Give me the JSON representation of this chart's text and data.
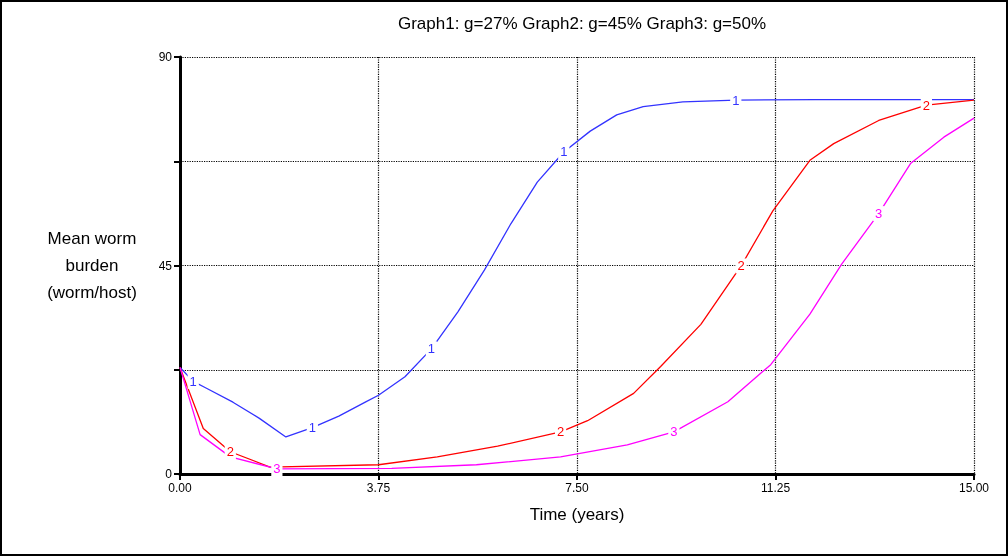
{
  "chart_data": {
    "type": "line",
    "title": "Graph1: g=27% Graph2: g=45% Graph3: g=50%",
    "xlabel": "Time (years)",
    "ylabel": "Mean worm\nburden\n(worm/host)",
    "xlim": [
      0,
      15
    ],
    "xticks": [
      {
        "value": 0,
        "label": "0.00"
      },
      {
        "value": 3.75,
        "label": "3.75"
      },
      {
        "value": 7.5,
        "label": "7.50"
      },
      {
        "value": 11.25,
        "label": "11.25"
      },
      {
        "value": 15,
        "label": "15.00"
      }
    ],
    "ylim": [
      0,
      90
    ],
    "yticks": [
      0,
      {
        "value": 22.5,
        "label": null
      },
      45,
      {
        "value": 67.5,
        "label": null
      },
      90
    ],
    "grid": true,
    "marker": "none",
    "line_style": "solid",
    "legend": false,
    "series": [
      {
        "name": "1",
        "color": "#3333ff",
        "x": [
          0,
          0.25,
          0.5,
          1,
          1.5,
          2,
          2.5,
          3,
          3.5,
          3.75,
          4.25,
          4.75,
          5.25,
          5.75,
          6.25,
          6.75,
          7.25,
          7.75,
          8.25,
          8.75,
          9.5,
          10.5,
          12,
          15
        ],
        "values": [
          23,
          20,
          18.5,
          15.5,
          12,
          8,
          10,
          12.5,
          15.5,
          17,
          21,
          27,
          35,
          44,
          54,
          63,
          69.5,
          74,
          77.5,
          79.3,
          80.3,
          80.7,
          80.8,
          80.8
        ]
      },
      {
        "name": "2",
        "color": "#ff0000",
        "x": [
          0,
          0.44,
          0.95,
          1.7,
          3.75,
          4.86,
          6,
          7.19,
          7.7,
          8.57,
          9.08,
          9.84,
          10.6,
          11.2,
          11.9,
          12.35,
          13.2,
          14.1,
          15
        ],
        "values": [
          23,
          9.8,
          4.8,
          1.5,
          2,
          3.7,
          6,
          9.1,
          11.5,
          17.4,
          23.2,
          32.3,
          44.9,
          56.8,
          67.7,
          71.3,
          76.3,
          79.6,
          80.7
        ]
      },
      {
        "name": "3",
        "color": "#ff00ff",
        "x": [
          0,
          0.38,
          0.95,
          1.83,
          4,
          5.6,
          7.19,
          8.45,
          9.33,
          10.35,
          11.16,
          11.9,
          12.5,
          13.2,
          13.8,
          14.43,
          15
        ],
        "values": [
          23,
          8.5,
          3.7,
          1.1,
          1.2,
          2,
          3.7,
          6.3,
          9.1,
          15.6,
          23.6,
          34.5,
          45.3,
          56.2,
          67,
          72.7,
          76.8
        ]
      }
    ]
  }
}
